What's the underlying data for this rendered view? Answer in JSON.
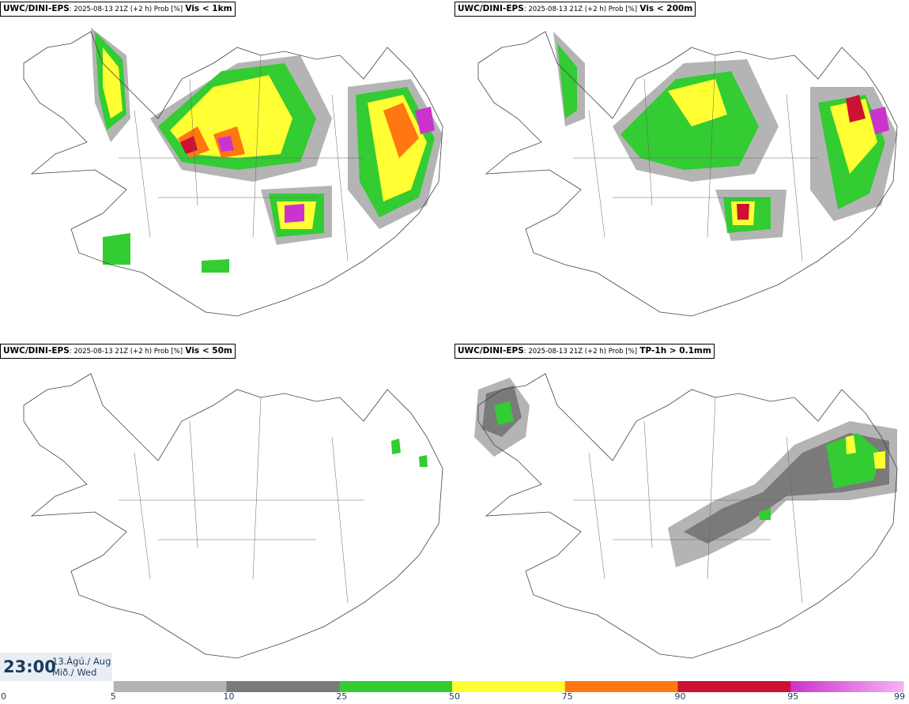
{
  "panels": [
    {
      "model": "UWC/DINI-EPS",
      "meta": ": 2025-08-13 21Z (+2 h) Prob [%]",
      "variable": "Vis < 1km"
    },
    {
      "model": "UWC/DINI-EPS",
      "meta": ": 2025-08-13 21Z (+2 h) Prob [%]",
      "variable": "Vis < 200m"
    },
    {
      "model": "UWC/DINI-EPS",
      "meta": ": 2025-08-13 21Z (+2 h) Prob [%]",
      "variable": "Vis < 50m"
    },
    {
      "model": "UWC/DINI-EPS",
      "meta": ": 2025-08-13 21Z (+2 h) Prob [%]",
      "variable": "TP-1h > 0.1mm"
    }
  ],
  "valid_time": {
    "time": "23:00",
    "date_line1": "13.Ágú./ Aug",
    "date_line2": "Mið./ Wed"
  },
  "colorbar": {
    "ticks": [
      "0",
      "5",
      "10",
      "25",
      "50",
      "75",
      "90",
      "95",
      "99"
    ],
    "colors": [
      "#ffffff",
      "#b4b4b4",
      "#7a7a7a",
      "#33cc33",
      "#ffff33",
      "#ff7711",
      "#cc1133",
      "#cc33cc",
      "#f4b4f4"
    ]
  }
}
